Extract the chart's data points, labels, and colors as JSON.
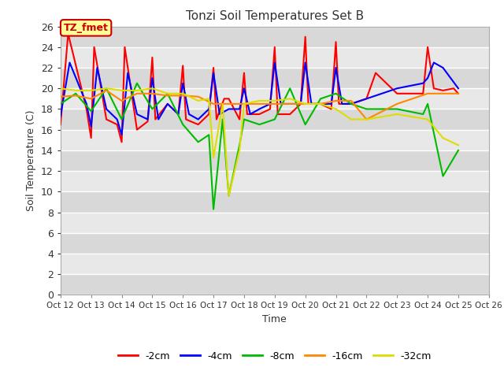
{
  "title": "Tonzi Soil Temperatures Set B",
  "xlabel": "Time",
  "ylabel": "Soil Temperature (C)",
  "ylim": [
    0,
    26
  ],
  "xlim": [
    12,
    26
  ],
  "fig_bg_color": "#ffffff",
  "plot_bg_color": "#e8e8e8",
  "grid_color": "#ffffff",
  "annotation_text": "TZ_fmet",
  "annotation_bg": "#ffff99",
  "annotation_border": "#cc0000",
  "annotation_text_color": "#cc0000",
  "series": {
    "-2cm": {
      "color": "#ff0000",
      "x": [
        12.0,
        12.25,
        12.85,
        13.0,
        13.1,
        13.5,
        13.85,
        14.0,
        14.1,
        14.5,
        14.85,
        15.0,
        15.1,
        15.5,
        15.85,
        16.0,
        16.1,
        16.5,
        16.85,
        17.0,
        17.1,
        17.35,
        17.5,
        17.85,
        18.0,
        18.1,
        18.5,
        18.85,
        19.0,
        19.1,
        19.5,
        19.85,
        20.0,
        20.1,
        20.5,
        20.85,
        21.0,
        21.1,
        21.5,
        22.0,
        22.3,
        23.0,
        23.85,
        24.0,
        24.2,
        24.5,
        24.85,
        25.0
      ],
      "y": [
        16.5,
        25.3,
        18.0,
        15.2,
        24.0,
        17.0,
        16.5,
        14.8,
        24.0,
        16.0,
        16.8,
        23.0,
        17.0,
        18.5,
        17.5,
        22.2,
        17.0,
        16.5,
        17.5,
        22.0,
        17.0,
        19.0,
        19.0,
        17.0,
        21.5,
        17.5,
        17.5,
        18.0,
        24.0,
        17.5,
        17.5,
        18.5,
        25.0,
        18.5,
        18.5,
        18.0,
        24.5,
        18.5,
        18.5,
        19.0,
        21.5,
        19.5,
        19.5,
        24.0,
        20.0,
        19.8,
        20.0,
        19.5
      ]
    },
    "-4cm": {
      "color": "#0000ff",
      "x": [
        12.0,
        12.3,
        12.85,
        13.0,
        13.2,
        13.5,
        13.85,
        14.0,
        14.2,
        14.5,
        14.85,
        15.0,
        15.2,
        15.5,
        15.85,
        16.0,
        16.2,
        16.5,
        16.85,
        17.0,
        17.2,
        17.5,
        17.85,
        18.0,
        18.2,
        18.5,
        18.85,
        19.0,
        19.2,
        19.5,
        19.85,
        20.0,
        20.2,
        20.5,
        20.85,
        21.0,
        21.2,
        21.5,
        22.0,
        23.0,
        23.85,
        24.0,
        24.2,
        24.5,
        25.0
      ],
      "y": [
        17.3,
        22.5,
        18.5,
        16.3,
        22.0,
        18.0,
        17.0,
        15.5,
        21.5,
        17.5,
        17.0,
        21.0,
        17.0,
        18.5,
        17.5,
        20.5,
        17.5,
        17.0,
        18.0,
        21.5,
        17.5,
        18.0,
        18.0,
        20.0,
        17.5,
        18.0,
        18.5,
        22.5,
        18.5,
        18.5,
        18.5,
        22.5,
        18.5,
        18.5,
        18.5,
        22.0,
        18.5,
        18.5,
        19.0,
        20.0,
        20.5,
        21.0,
        22.5,
        22.0,
        20.0
      ]
    },
    "-8cm": {
      "color": "#00bb00",
      "x": [
        12.0,
        12.5,
        13.0,
        13.5,
        14.0,
        14.5,
        15.0,
        15.5,
        16.0,
        16.5,
        16.85,
        17.0,
        17.3,
        17.5,
        17.85,
        18.0,
        18.5,
        19.0,
        19.5,
        20.0,
        20.5,
        21.0,
        21.5,
        22.0,
        23.0,
        23.85,
        24.0,
        24.5,
        25.0
      ],
      "y": [
        18.5,
        19.5,
        17.8,
        20.0,
        17.0,
        20.5,
        18.0,
        19.5,
        16.5,
        14.8,
        15.5,
        8.3,
        17.0,
        9.6,
        14.5,
        17.0,
        16.5,
        17.0,
        20.0,
        16.5,
        19.0,
        19.5,
        18.5,
        18.0,
        18.0,
        17.5,
        18.5,
        11.5,
        14.0
      ]
    },
    "-16cm": {
      "color": "#ff8800",
      "x": [
        12.0,
        12.5,
        13.0,
        13.5,
        14.0,
        14.5,
        15.0,
        15.5,
        16.0,
        16.5,
        17.0,
        17.5,
        18.0,
        18.5,
        19.0,
        19.5,
        20.0,
        20.5,
        21.0,
        21.5,
        22.0,
        23.0,
        24.0,
        24.5,
        25.0
      ],
      "y": [
        19.2,
        19.3,
        19.0,
        19.8,
        18.8,
        19.5,
        19.5,
        19.3,
        19.3,
        19.2,
        18.5,
        18.5,
        18.5,
        18.5,
        18.5,
        18.5,
        18.5,
        18.5,
        18.8,
        18.8,
        17.0,
        18.5,
        19.5,
        19.5,
        19.5
      ]
    },
    "-32cm": {
      "color": "#dddd00",
      "x": [
        12.0,
        12.5,
        13.0,
        13.5,
        14.0,
        14.5,
        15.0,
        15.5,
        16.0,
        16.5,
        16.85,
        17.0,
        17.3,
        17.5,
        17.85,
        18.0,
        18.5,
        19.0,
        19.5,
        20.0,
        20.5,
        21.0,
        21.5,
        22.0,
        23.0,
        24.0,
        24.5,
        25.0
      ],
      "y": [
        20.0,
        19.8,
        19.8,
        20.0,
        19.8,
        19.8,
        20.0,
        19.5,
        19.5,
        18.8,
        19.0,
        13.3,
        18.5,
        9.6,
        14.0,
        18.5,
        18.8,
        18.8,
        19.0,
        18.5,
        18.5,
        18.0,
        17.0,
        17.0,
        17.5,
        17.0,
        15.2,
        14.5
      ]
    }
  },
  "xtick_labels": [
    "Oct 12",
    "Oct 13",
    "Oct 14",
    "Oct 15",
    "Oct 16",
    "Oct 17",
    "Oct 18",
    "Oct 19",
    "Oct 20",
    "Oct 21",
    "Oct 22",
    "Oct 23",
    "Oct 24",
    "Oct 25",
    "Oct 26"
  ],
  "xtick_positions": [
    12,
    13,
    14,
    15,
    16,
    17,
    18,
    19,
    20,
    21,
    22,
    23,
    24,
    25,
    26
  ],
  "ytick_positions": [
    0,
    2,
    4,
    6,
    8,
    10,
    12,
    14,
    16,
    18,
    20,
    22,
    24,
    26
  ]
}
